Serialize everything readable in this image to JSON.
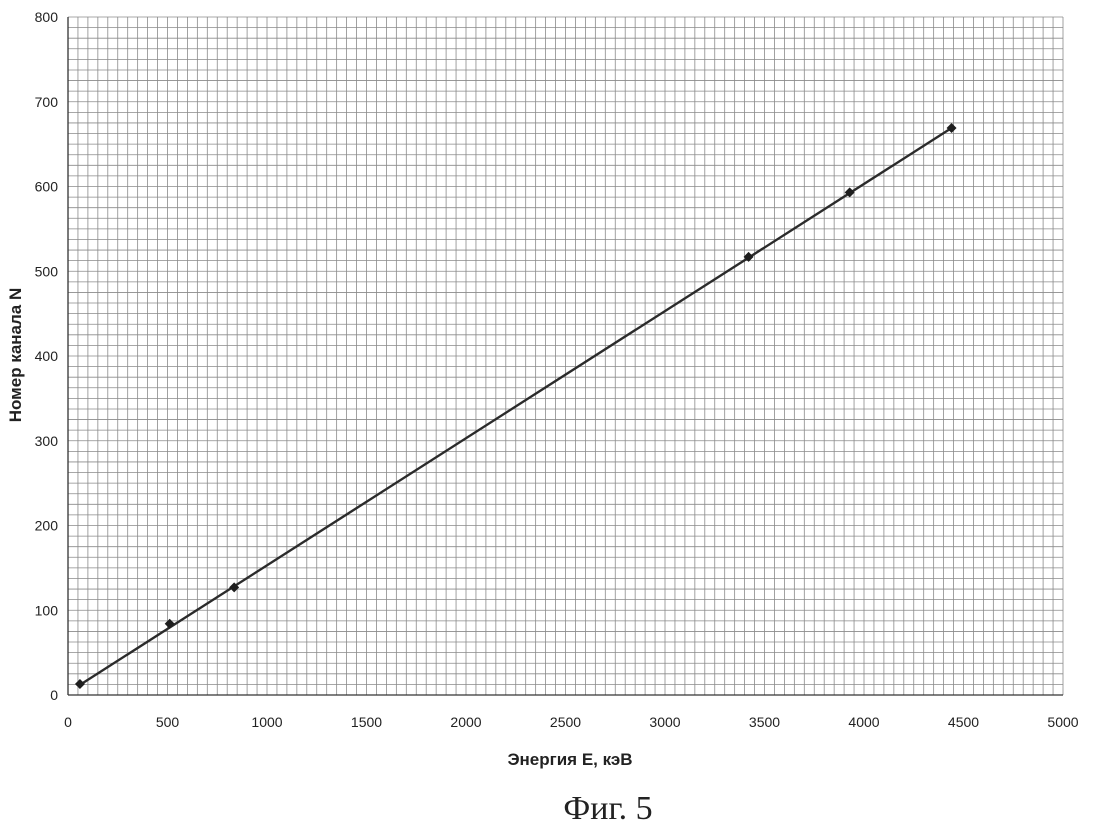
{
  "chart_data": {
    "type": "scatter",
    "title": "",
    "xlabel": "Энергия Е, кэВ",
    "ylabel": "Номер канала N",
    "xlim": [
      0,
      5000
    ],
    "ylim": [
      0,
      800
    ],
    "xticks": [
      0,
      500,
      1000,
      1500,
      2000,
      2500,
      3000,
      3500,
      4000,
      4500,
      5000
    ],
    "yticks": [
      0,
      100,
      200,
      300,
      400,
      500,
      600,
      700,
      800
    ],
    "xtick_labels": [
      "0",
      "500",
      "1000",
      "1500",
      "2000",
      "2500",
      "3000",
      "3500",
      "4000",
      "4500",
      "5000"
    ],
    "ytick_labels": [
      "0",
      "100",
      "200",
      "300",
      "400",
      "500",
      "600",
      "700",
      "800"
    ],
    "grid": true,
    "legend": "none",
    "series": [
      {
        "marker": "diamond",
        "x": [
          60,
          511,
          835,
          3420,
          3928,
          4440
        ],
        "y": [
          13,
          84,
          127,
          517,
          593,
          669
        ]
      }
    ],
    "trendline": {
      "x": [
        60,
        4440
      ],
      "y": [
        12,
        669
      ]
    }
  },
  "caption": "Фиг. 5",
  "colors": {
    "grid": "#8a8a8a",
    "line": "#2b2b2b",
    "marker": "#1e1e1e",
    "background": "#ffffff"
  }
}
